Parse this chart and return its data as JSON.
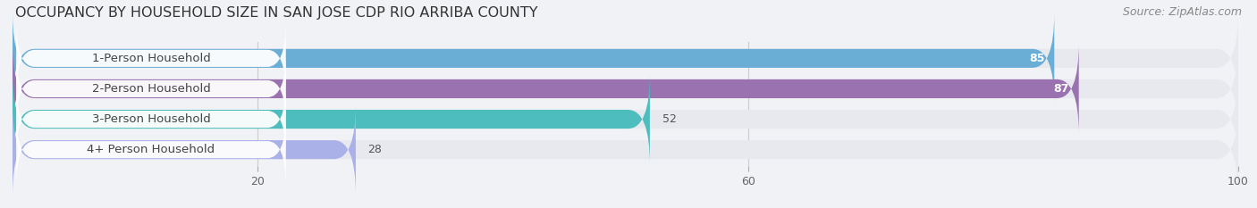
{
  "title": "OCCUPANCY BY HOUSEHOLD SIZE IN SAN JOSE CDP RIO ARRIBA COUNTY",
  "source": "Source: ZipAtlas.com",
  "categories": [
    "1-Person Household",
    "2-Person Household",
    "3-Person Household",
    "4+ Person Household"
  ],
  "values": [
    85,
    87,
    52,
    28
  ],
  "bar_colors": [
    "#6aaed6",
    "#9b72b0",
    "#4dbdbd",
    "#aab0e8"
  ],
  "label_colors": [
    "white",
    "white",
    "#555555",
    "#555555"
  ],
  "xlim": [
    0,
    100
  ],
  "xticks": [
    20,
    60,
    100
  ],
  "bg_color": "#f0f2f5",
  "bar_bg_color": "#e8e8ef",
  "label_badge_color": "#ffffff",
  "title_fontsize": 11.5,
  "source_fontsize": 9,
  "label_fontsize": 9.5,
  "value_fontsize": 9,
  "bar_height": 0.62,
  "category_text_color": "#444444"
}
